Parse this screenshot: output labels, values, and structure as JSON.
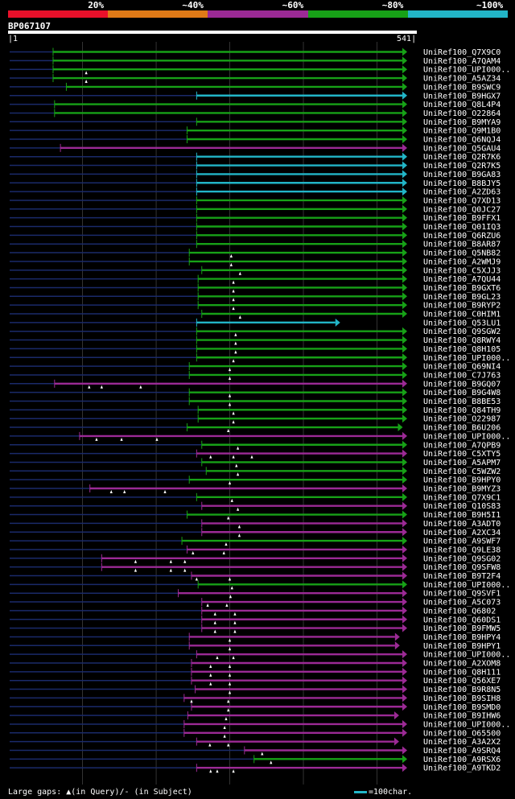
{
  "legend": [
    {
      "label": "20%",
      "color": "#e8102a"
    },
    {
      "label": "~40%",
      "color": "#e07a17"
    },
    {
      "label": "~60%",
      "color": "#9b2a95"
    },
    {
      "label": "~80%",
      "color": "#17a117"
    },
    {
      "label": "~100%",
      "color": "#22b5c7"
    }
  ],
  "query": {
    "id": "BP067107",
    "start": "1",
    "end": "541",
    "length": 541
  },
  "footer": {
    "gaps_text": "Large gaps: ▲(in Query)/- (in Subject)",
    "scale_text": "=100char."
  },
  "colors": {
    "background": "#000000",
    "backbone": "#1a2a6a",
    "gridline": "#555555",
    "query_bar": "#ffffff"
  },
  "chart_data": {
    "type": "alignment",
    "hits": [
      {
        "name": "UniRef100_Q7X9C0",
        "start": 60,
        "end": 541,
        "color": "#17a117",
        "gaps": []
      },
      {
        "name": "UniRef100_A7QAM4",
        "start": 60,
        "end": 541,
        "color": "#17a117",
        "gaps": []
      },
      {
        "name": "UniRef100_UPI000..",
        "start": 60,
        "end": 541,
        "color": "#17a117",
        "gaps": [
          105
        ]
      },
      {
        "name": "UniRef100_A5AZ34",
        "start": 60,
        "end": 541,
        "color": "#17a117",
        "gaps": [
          105
        ]
      },
      {
        "name": "UniRef100_B9SWC9",
        "start": 78,
        "end": 541,
        "color": "#17a117",
        "gaps": []
      },
      {
        "name": "UniRef100_B9HGX7",
        "start": 255,
        "end": 541,
        "color": "#22b5c7",
        "gaps": []
      },
      {
        "name": "UniRef100_Q8L4P4",
        "start": 62,
        "end": 541,
        "color": "#17a117",
        "gaps": []
      },
      {
        "name": "UniRef100_O22864",
        "start": 62,
        "end": 541,
        "color": "#17a117",
        "gaps": []
      },
      {
        "name": "UniRef100_B9MYA9",
        "start": 255,
        "end": 541,
        "color": "#17a117",
        "gaps": []
      },
      {
        "name": "UniRef100_Q9M1B0",
        "start": 242,
        "end": 541,
        "color": "#17a117",
        "gaps": []
      },
      {
        "name": "UniRef100_Q6NQJ4",
        "start": 242,
        "end": 541,
        "color": "#17a117",
        "gaps": []
      },
      {
        "name": "UniRef100_Q5GAU4",
        "start": 70,
        "end": 541,
        "color": "#9b2a95",
        "gaps": []
      },
      {
        "name": "UniRef100_Q2R7K6",
        "start": 255,
        "end": 541,
        "color": "#22b5c7",
        "gaps": []
      },
      {
        "name": "UniRef100_Q2R7K5",
        "start": 255,
        "end": 541,
        "color": "#22b5c7",
        "gaps": []
      },
      {
        "name": "UniRef100_B9GA83",
        "start": 255,
        "end": 541,
        "color": "#22b5c7",
        "gaps": []
      },
      {
        "name": "UniRef100_B8BJY5",
        "start": 255,
        "end": 541,
        "color": "#22b5c7",
        "gaps": []
      },
      {
        "name": "UniRef100_A2ZD63",
        "start": 255,
        "end": 541,
        "color": "#22b5c7",
        "gaps": []
      },
      {
        "name": "UniRef100_Q7XD13",
        "start": 255,
        "end": 541,
        "color": "#17a117",
        "gaps": []
      },
      {
        "name": "UniRef100_Q0JC27",
        "start": 255,
        "end": 541,
        "color": "#17a117",
        "gaps": []
      },
      {
        "name": "UniRef100_B9FFX1",
        "start": 255,
        "end": 541,
        "color": "#17a117",
        "gaps": []
      },
      {
        "name": "UniRef100_Q01IQ3",
        "start": 255,
        "end": 541,
        "color": "#17a117",
        "gaps": []
      },
      {
        "name": "UniRef100_Q6RZU6",
        "start": 255,
        "end": 541,
        "color": "#17a117",
        "gaps": []
      },
      {
        "name": "UniRef100_B8AR87",
        "start": 255,
        "end": 541,
        "color": "#17a117",
        "gaps": []
      },
      {
        "name": "UniRef100_Q5NB82",
        "start": 245,
        "end": 541,
        "color": "#17a117",
        "gaps": [
          302
        ]
      },
      {
        "name": "UniRef100_A2WMJ9",
        "start": 245,
        "end": 541,
        "color": "#17a117",
        "gaps": [
          302
        ]
      },
      {
        "name": "UniRef100_C5XJJ3",
        "start": 262,
        "end": 541,
        "color": "#17a117",
        "gaps": [
          314
        ]
      },
      {
        "name": "UniRef100_A7QU44",
        "start": 257,
        "end": 541,
        "color": "#17a117",
        "gaps": [
          305
        ]
      },
      {
        "name": "UniRef100_B9GXT6",
        "start": 257,
        "end": 541,
        "color": "#17a117",
        "gaps": [
          305
        ]
      },
      {
        "name": "UniRef100_B9GL23",
        "start": 257,
        "end": 541,
        "color": "#17a117",
        "gaps": [
          305
        ]
      },
      {
        "name": "UniRef100_B9RYP2",
        "start": 257,
        "end": 541,
        "color": "#17a117",
        "gaps": [
          305
        ]
      },
      {
        "name": "UniRef100_C0HIM1",
        "start": 262,
        "end": 541,
        "color": "#17a117",
        "gaps": [
          314
        ]
      },
      {
        "name": "UniRef100_Q53LU1",
        "start": 255,
        "end": 450,
        "color": "#22b5c7",
        "gaps": []
      },
      {
        "name": "UniRef100_Q9SGW2",
        "start": 255,
        "end": 541,
        "color": "#17a117",
        "gaps": [
          308
        ]
      },
      {
        "name": "UniRef100_Q8RWY4",
        "start": 255,
        "end": 541,
        "color": "#17a117",
        "gaps": [
          308
        ]
      },
      {
        "name": "UniRef100_Q8H105",
        "start": 255,
        "end": 541,
        "color": "#17a117",
        "gaps": [
          308
        ]
      },
      {
        "name": "UniRef100_UPI000..",
        "start": 255,
        "end": 541,
        "color": "#17a117",
        "gaps": [
          305
        ]
      },
      {
        "name": "UniRef100_Q69NI4",
        "start": 245,
        "end": 541,
        "color": "#17a117",
        "gaps": [
          300
        ]
      },
      {
        "name": "UniRef100_C7J763",
        "start": 245,
        "end": 541,
        "color": "#17a117",
        "gaps": [
          300
        ]
      },
      {
        "name": "UniRef100_B9GQ07",
        "start": 62,
        "end": 541,
        "color": "#9b2a95",
        "gaps": [
          109,
          126,
          179
        ]
      },
      {
        "name": "UniRef100_B9G4W8",
        "start": 245,
        "end": 541,
        "color": "#17a117",
        "gaps": [
          300
        ]
      },
      {
        "name": "UniRef100_B8BE53",
        "start": 245,
        "end": 541,
        "color": "#17a117",
        "gaps": [
          300
        ]
      },
      {
        "name": "UniRef100_Q84TH9",
        "start": 257,
        "end": 541,
        "color": "#17a117",
        "gaps": [
          305
        ]
      },
      {
        "name": "UniRef100_O22987",
        "start": 257,
        "end": 541,
        "color": "#17a117",
        "gaps": [
          305
        ]
      },
      {
        "name": "UniRef100_B6U206",
        "start": 242,
        "end": 535,
        "color": "#17a117",
        "gaps": [
          298
        ]
      },
      {
        "name": "UniRef100_UPI000..",
        "start": 96,
        "end": 541,
        "color": "#9b2a95",
        "gaps": [
          119,
          153,
          201
        ]
      },
      {
        "name": "UniRef100_A7QPB9",
        "start": 262,
        "end": 541,
        "color": "#17a117",
        "gaps": [
          311
        ]
      },
      {
        "name": "UniRef100_C5XTY5",
        "start": 255,
        "end": 541,
        "color": "#9b2a95",
        "gaps": [
          274,
          305,
          330
        ]
      },
      {
        "name": "UniRef100_A5APM7",
        "start": 262,
        "end": 541,
        "color": "#17a117",
        "gaps": [
          309
        ]
      },
      {
        "name": "UniRef100_C5WZW2",
        "start": 268,
        "end": 541,
        "color": "#17a117",
        "gaps": [
          311
        ]
      },
      {
        "name": "UniRef100_B9HPY0",
        "start": 245,
        "end": 541,
        "color": "#17a117",
        "gaps": [
          300
        ]
      },
      {
        "name": "UniRef100_B9MYZ3",
        "start": 110,
        "end": 541,
        "color": "#9b2a95",
        "gaps": [
          139,
          157,
          212
        ]
      },
      {
        "name": "UniRef100_Q7X9C1",
        "start": 255,
        "end": 541,
        "color": "#17a117",
        "gaps": [
          303
        ]
      },
      {
        "name": "UniRef100_Q10S83",
        "start": 262,
        "end": 541,
        "color": "#9b2a95",
        "gaps": [
          311
        ]
      },
      {
        "name": "UniRef100_B9H5I1",
        "start": 242,
        "end": 541,
        "color": "#17a117",
        "gaps": [
          298
        ]
      },
      {
        "name": "UniRef100_A3ADT0",
        "start": 262,
        "end": 541,
        "color": "#9b2a95",
        "gaps": [
          313
        ]
      },
      {
        "name": "UniRef100_A2XC34",
        "start": 262,
        "end": 541,
        "color": "#9b2a95",
        "gaps": [
          313
        ]
      },
      {
        "name": "UniRef100_A9SWF7",
        "start": 235,
        "end": 541,
        "color": "#17a117",
        "gaps": [
          295
        ]
      },
      {
        "name": "UniRef100_Q9LE38",
        "start": 242,
        "end": 541,
        "color": "#9b2a95",
        "gaps": [
          250,
          292
        ]
      },
      {
        "name": "UniRef100_Q9SG02",
        "start": 126,
        "end": 541,
        "color": "#9b2a95",
        "gaps": [
          172,
          220,
          239
        ]
      },
      {
        "name": "UniRef100_Q9SFW8",
        "start": 126,
        "end": 541,
        "color": "#9b2a95",
        "gaps": [
          172,
          220,
          239
        ]
      },
      {
        "name": "UniRef100_B9T2F4",
        "start": 248,
        "end": 541,
        "color": "#9b2a95",
        "gaps": [
          255,
          300
        ]
      },
      {
        "name": "UniRef100_UPI000..",
        "start": 257,
        "end": 541,
        "color": "#17a117",
        "gaps": [
          303
        ]
      },
      {
        "name": "UniRef100_Q9SVF1",
        "start": 230,
        "end": 541,
        "color": "#9b2a95",
        "gaps": [
          301
        ]
      },
      {
        "name": "UniRef100_A5C073",
        "start": 262,
        "end": 541,
        "color": "#9b2a95",
        "gaps": [
          270,
          296
        ]
      },
      {
        "name": "UniRef100_Q6802",
        "start": 262,
        "end": 541,
        "color": "#9b2a95",
        "gaps": [
          280,
          307
        ]
      },
      {
        "name": "UniRef100_Q60DS1",
        "start": 262,
        "end": 541,
        "color": "#9b2a95",
        "gaps": [
          280,
          307
        ]
      },
      {
        "name": "UniRef100_B9FMW5",
        "start": 262,
        "end": 541,
        "color": "#9b2a95",
        "gaps": [
          280,
          307
        ]
      },
      {
        "name": "UniRef100_B9HPY4",
        "start": 245,
        "end": 531,
        "color": "#9b2a95",
        "gaps": [
          300
        ]
      },
      {
        "name": "UniRef100_B9HPY1",
        "start": 245,
        "end": 531,
        "color": "#9b2a95",
        "gaps": [
          300
        ]
      },
      {
        "name": "UniRef100_UPI000..",
        "start": 255,
        "end": 541,
        "color": "#9b2a95",
        "gaps": [
          283,
          305
        ]
      },
      {
        "name": "UniRef100_A2XOM8",
        "start": 248,
        "end": 541,
        "color": "#9b2a95",
        "gaps": [
          274,
          300
        ]
      },
      {
        "name": "UniRef100_Q8H111",
        "start": 248,
        "end": 541,
        "color": "#9b2a95",
        "gaps": [
          274,
          300
        ]
      },
      {
        "name": "UniRef100_Q56XE7",
        "start": 248,
        "end": 541,
        "color": "#9b2a95",
        "gaps": [
          274,
          300
        ]
      },
      {
        "name": "UniRef100_B9R8N5",
        "start": 253,
        "end": 541,
        "color": "#9b2a95",
        "gaps": [
          300
        ]
      },
      {
        "name": "UniRef100_B9SIH8",
        "start": 238,
        "end": 541,
        "color": "#9b2a95",
        "gaps": [
          248,
          298
        ]
      },
      {
        "name": "UniRef100_B9SMD0",
        "start": 248,
        "end": 541,
        "color": "#9b2a95",
        "gaps": [
          298
        ]
      },
      {
        "name": "UniRef100_B9IHW6",
        "start": 243,
        "end": 530,
        "color": "#9b2a95",
        "gaps": [
          295
        ]
      },
      {
        "name": "UniRef100_UPI000..",
        "start": 238,
        "end": 541,
        "color": "#9b2a95",
        "gaps": [
          293
        ]
      },
      {
        "name": "UniRef100_O65500",
        "start": 238,
        "end": 541,
        "color": "#9b2a95",
        "gaps": [
          293
        ]
      },
      {
        "name": "UniRef100_A3A2X2",
        "start": 255,
        "end": 530,
        "color": "#9b2a95",
        "gaps": [
          273,
          298
        ]
      },
      {
        "name": "UniRef100_A9SRQ4",
        "start": 320,
        "end": 541,
        "color": "#9b2a95",
        "gaps": [
          344
        ]
      },
      {
        "name": "UniRef100_A9RSX6",
        "start": 333,
        "end": 541,
        "color": "#17a117",
        "gaps": [
          356
        ]
      },
      {
        "name": "UniRef100_A9TKD2",
        "start": 255,
        "end": 541,
        "color": "#9b2a95",
        "gaps": [
          274,
          283,
          305
        ]
      }
    ]
  }
}
